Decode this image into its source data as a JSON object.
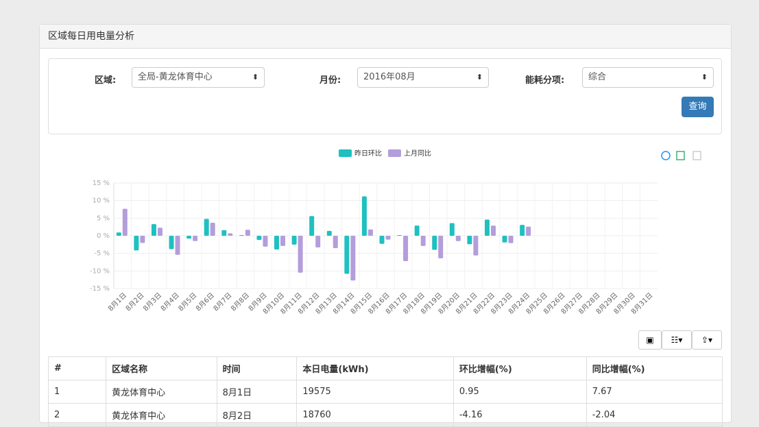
{
  "panel": {
    "title": "区域每日用电量分析"
  },
  "form": {
    "fields": [
      {
        "label": "区域:",
        "value": "全局-黄龙体育中心"
      },
      {
        "label": "月份:",
        "value": "2016年08月"
      },
      {
        "label": "能耗分项:",
        "value": "综合"
      }
    ],
    "button": "查询"
  },
  "chart_data": {
    "type": "bar",
    "categories": [
      "8月1日",
      "8月2日",
      "8月3日",
      "8月4日",
      "8月5日",
      "8月6日",
      "8月7日",
      "8月8日",
      "8月9日",
      "8月10日",
      "8月11日",
      "8月12日",
      "8月13日",
      "8月14日",
      "8月15日",
      "8月16日",
      "8月17日",
      "8月18日",
      "8月19日",
      "8月20日",
      "8月21日",
      "8月22日",
      "8月23日",
      "8月24日",
      "8月25日",
      "8月26日",
      "8月27日",
      "8月28日",
      "8月29日",
      "8月30日",
      "8月31日"
    ],
    "series": [
      {
        "name": "昨日环比",
        "color": "#1fc0c0",
        "values": [
          0.95,
          -4.16,
          3.3,
          -3.8,
          -0.8,
          4.8,
          1.6,
          0.2,
          -1.2,
          -3.9,
          -2.5,
          5.6,
          1.4,
          -10.8,
          11.2,
          -2.3,
          0.2,
          2.9,
          -4,
          3.6,
          -2.4,
          4.6,
          -1.9,
          3.1,
          null,
          null,
          null,
          null,
          null,
          null,
          null
        ]
      },
      {
        "name": "上月同比",
        "color": "#b39ddb",
        "values": [
          7.67,
          -2.04,
          2.3,
          -5.4,
          -1.5,
          3.7,
          0.7,
          1.7,
          -3.1,
          -2.9,
          -10.5,
          -3.3,
          -3.5,
          -12.7,
          1.8,
          -1.1,
          -7.2,
          -2.9,
          -6.4,
          -1.5,
          -5.6,
          2.9,
          -2.1,
          2.6,
          null,
          null,
          null,
          null,
          null,
          null,
          null
        ]
      }
    ],
    "ylim": [
      -15,
      15
    ],
    "yticks": [
      {
        "value": -15,
        "label": "-15 %"
      },
      {
        "value": -10,
        "label": "-10 %"
      },
      {
        "value": -5,
        "label": "-5 %"
      },
      {
        "value": 0,
        "label": "0 %"
      },
      {
        "value": 5,
        "label": "5 %"
      },
      {
        "value": 10,
        "label": "10 %"
      },
      {
        "value": 15,
        "label": "15 %"
      }
    ],
    "grid": true,
    "legend": "top"
  },
  "table": {
    "columns": [
      "#",
      "区域名称",
      "时间",
      "本日电量(kWh)",
      "环比增幅(%)",
      "同比增幅(%)"
    ],
    "rows": [
      [
        "1",
        "黄龙体育中心",
        "8月1日",
        "19575",
        "0.95",
        "7.67"
      ],
      [
        "2",
        "黄龙体育中心",
        "8月2日",
        "18760",
        "-4.16",
        "-2.04"
      ]
    ]
  }
}
